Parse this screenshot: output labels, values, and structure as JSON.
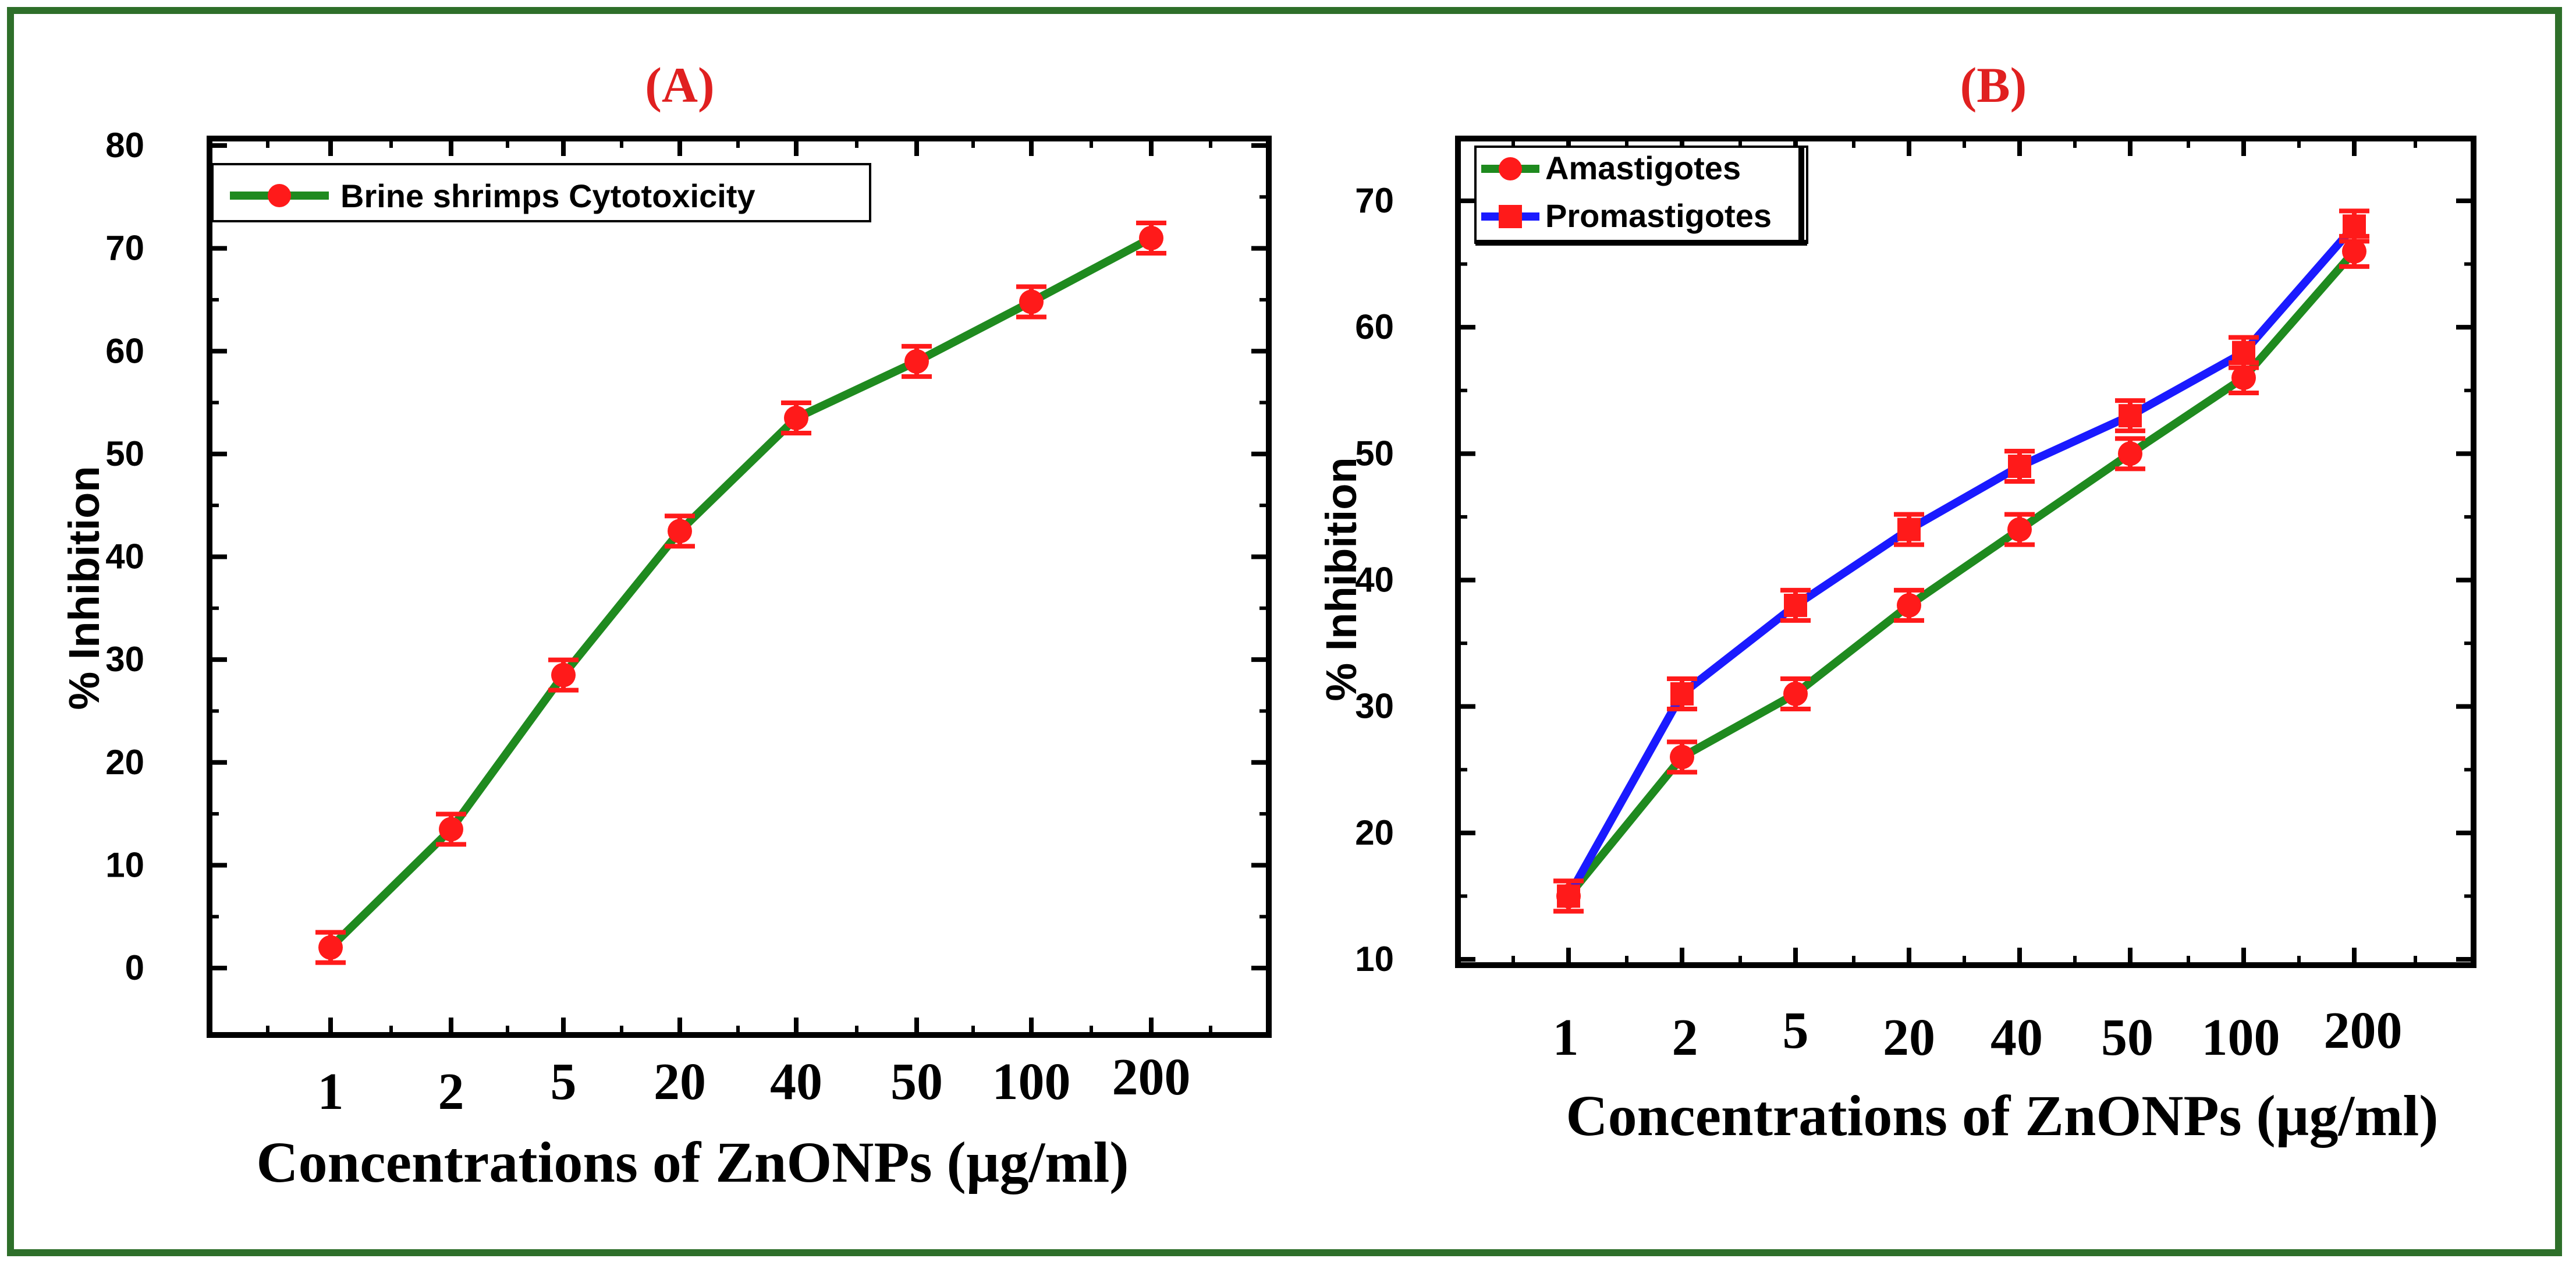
{
  "chart_data": [
    {
      "panel": "A",
      "type": "line",
      "title": "(A)",
      "xlabel": "Concentrations of ZnONPs (µg/ml)",
      "ylabel": "% Inhibition",
      "categories": [
        "1",
        "2",
        "5",
        "20",
        "40",
        "50",
        "100",
        "200"
      ],
      "ylim": [
        -5,
        80
      ],
      "yticks": [
        0,
        10,
        20,
        30,
        40,
        50,
        60,
        70,
        80
      ],
      "legend_position": "top-left",
      "series": [
        {
          "name": "Brine shrimps Cytotoxicity",
          "color": "#1f8a1f",
          "marker_color": "#ff1a1a",
          "marker": "circle",
          "values": [
            2,
            13.5,
            28.5,
            42.5,
            53.5,
            59,
            64.8,
            71
          ]
        }
      ]
    },
    {
      "panel": "B",
      "type": "line",
      "title": "(B)",
      "xlabel": "Concentrations of ZnONPs (µg/ml)",
      "ylabel": "% Inhibition",
      "categories": [
        "1",
        "2",
        "5",
        "20",
        "40",
        "50",
        "100",
        "200"
      ],
      "ylim": [
        10,
        75
      ],
      "yticks": [
        10,
        20,
        30,
        40,
        50,
        60,
        70
      ],
      "legend_position": "top-left",
      "series": [
        {
          "name": "Amastigotes",
          "color": "#1f8a1f",
          "marker_color": "#ff1a1a",
          "marker": "circle",
          "values": [
            15,
            26,
            31,
            38,
            44,
            50,
            56,
            66
          ]
        },
        {
          "name": "Promastigotes",
          "color": "#1a1aff",
          "marker_color": "#ff1a1a",
          "marker": "square",
          "values": [
            15,
            31,
            38,
            44,
            49,
            53,
            58,
            68
          ]
        }
      ]
    }
  ]
}
